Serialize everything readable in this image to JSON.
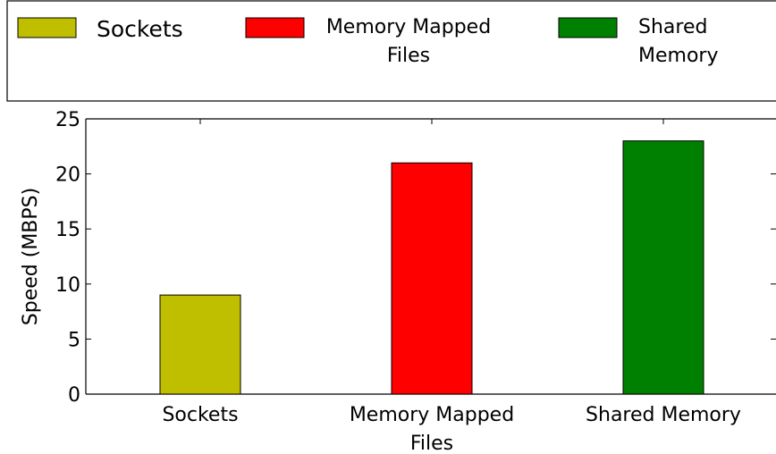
{
  "chart_data": {
    "type": "bar",
    "title": "",
    "xlabel": "",
    "ylabel": "Speed (MBPS)",
    "categories": [
      [
        "Sockets"
      ],
      [
        "Memory Mapped",
        "Files"
      ],
      [
        "Shared Memory"
      ]
    ],
    "values": [
      9,
      21,
      23
    ],
    "colors": [
      "#bfbf00",
      "#ff0000",
      "#008000"
    ],
    "ylim": [
      0,
      25
    ],
    "yticks": [
      "0",
      "5",
      "10",
      "15",
      "20",
      "25"
    ],
    "grid": false,
    "legend": {
      "placement": "top",
      "entries": [
        {
          "label": [
            "Sockets"
          ],
          "color": "#bfbf00"
        },
        {
          "label": [
            "Memory Mapped",
            "Files"
          ],
          "color": "#ff0000"
        },
        {
          "label": [
            "Shared",
            "Memory"
          ],
          "color": "#008000"
        }
      ]
    }
  }
}
